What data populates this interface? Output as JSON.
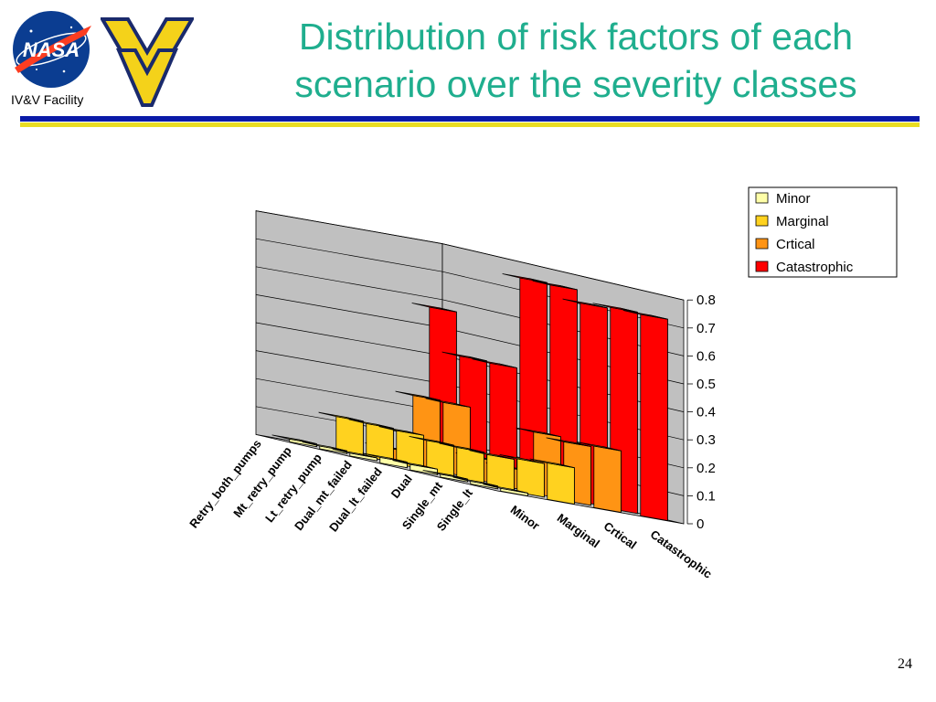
{
  "header": {
    "title_line1": "Distribution of risk factors of each",
    "title_line2": "scenario over the severity classes",
    "facility": "IV&V Facility",
    "nasa_logo_text": "NASA",
    "title_color": "#1fae8e",
    "rule_colors": [
      "#0a1aa8",
      "#e9dc22"
    ]
  },
  "footer": {
    "page_number": "24"
  },
  "chart_data": {
    "type": "bar",
    "subtype": "3d-column",
    "title": "",
    "categories": [
      "Single_lt",
      "Single_mt",
      "Dual",
      "Dual_lt_failed",
      "Dual_mt_failed",
      "Lt_retry_pump",
      "Mt_retry_pump",
      "Retry_both_pumps"
    ],
    "series": [
      {
        "name": "Minor",
        "color": "#ffffa8",
        "values": [
          0.01,
          0.01,
          0.01,
          0.02,
          0.02,
          0.01,
          0.01,
          0.01
        ]
      },
      {
        "name": "Marginal",
        "color": "#ffd21f",
        "values": [
          0.13,
          0.12,
          0.11,
          0.11,
          0.11,
          0.12,
          0.12,
          0.12
        ]
      },
      {
        "name": "Crtical",
        "color": "#ff9414",
        "values": [
          0.22,
          0.21,
          0.22,
          0.07,
          0.08,
          0.25,
          0.25,
          0.04
        ]
      },
      {
        "name": "Catastrophic",
        "color": "#ff0000",
        "values": [
          0.72,
          0.72,
          0.71,
          0.75,
          0.75,
          0.42,
          0.42,
          0.57
        ]
      }
    ],
    "zlim": [
      0,
      0.8
    ],
    "ticks": [
      "0",
      "0.1",
      "0.2",
      "0.3",
      "0.4",
      "0.5",
      "0.6",
      "0.7",
      "0.8"
    ],
    "legend_position": "top-right",
    "grid": true
  }
}
